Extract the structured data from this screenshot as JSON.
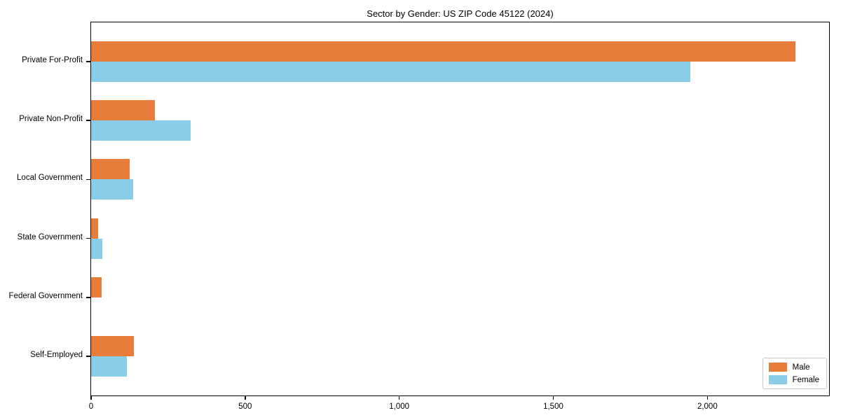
{
  "title": "Sector by Gender: US ZIP Code 45122 (2024)",
  "colors": {
    "male": "#E87D3B",
    "female": "#89CDE9",
    "axis": "#000000",
    "background": "#FFFFFF",
    "legend_border": "#C8C8C8"
  },
  "chart_data": {
    "type": "bar",
    "orientation": "horizontal",
    "title": "Sector by Gender: US ZIP Code 45122 (2024)",
    "categories": [
      "Private For-Profit",
      "Private Non-Profit",
      "Local Government",
      "State Government",
      "Federal Government",
      "Self-Employed"
    ],
    "series": [
      {
        "name": "Male",
        "color": "#E87D3B",
        "values": [
          2285,
          207,
          125,
          23,
          34,
          139
        ]
      },
      {
        "name": "Female",
        "color": "#89CDE9",
        "values": [
          1945,
          324,
          137,
          36,
          0,
          117
        ]
      }
    ],
    "xlabel": "",
    "ylabel": "",
    "xlim": [
      0,
      2395
    ],
    "x_ticks": [
      {
        "value": 0,
        "label": "0"
      },
      {
        "value": 500,
        "label": "500"
      },
      {
        "value": 1000,
        "label": "1,000"
      },
      {
        "value": 1500,
        "label": "1,500"
      },
      {
        "value": 2000,
        "label": "2,000"
      }
    ],
    "grid": false,
    "legend_position": "lower right"
  }
}
